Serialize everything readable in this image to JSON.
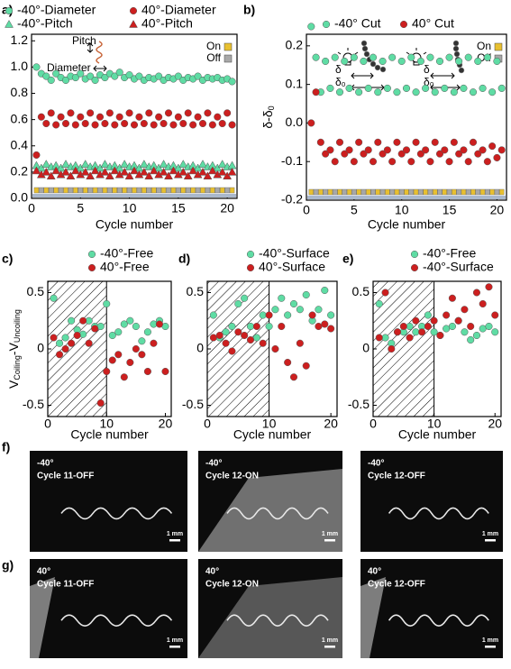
{
  "chart_data": [
    {
      "type": "scatter",
      "panel": "a)",
      "xlabel": "Cycle number",
      "x": [
        0.5,
        1,
        1.5,
        2,
        2.5,
        3,
        3.5,
        4,
        4.5,
        5,
        5.5,
        6,
        6.5,
        7,
        7.5,
        8,
        8.5,
        9,
        9.5,
        10,
        10.5,
        11,
        11.5,
        12,
        12.5,
        13,
        13.5,
        14,
        14.5,
        15,
        15.5,
        16,
        16.5,
        17,
        17.5,
        18,
        18.5,
        19,
        19.5,
        20,
        20.5
      ],
      "xlim": [
        0,
        21
      ],
      "xticks": [
        0,
        5,
        10,
        15,
        20
      ],
      "ylim": [
        0,
        1.25
      ],
      "yticks": [
        {
          "value": 0,
          "label": "0.0"
        },
        {
          "value": 0.2,
          "label": "0.2"
        },
        0.4,
        0.6,
        0.8,
        {
          "value": 1,
          "label": "1.0"
        },
        {
          "value": 1.2,
          "label": "1.2"
        }
      ],
      "series": [
        {
          "name": "-40°-Diameter",
          "color": "#5fdca4",
          "marker": "circle",
          "values": [
            1.0,
            0.95,
            0.93,
            0.9,
            0.95,
            0.92,
            0.9,
            0.93,
            0.92,
            0.95,
            0.91,
            0.93,
            0.9,
            0.94,
            0.92,
            0.95,
            0.93,
            0.96,
            0.92,
            0.94,
            0.91,
            0.93,
            0.9,
            0.92,
            0.91,
            0.93,
            0.9,
            0.92,
            0.91,
            0.93,
            0.9,
            0.92,
            0.91,
            0.93,
            0.9,
            0.92,
            0.91,
            0.92,
            0.9,
            0.91,
            0.89
          ]
        },
        {
          "name": "40°-Diameter",
          "color": "#cc1f1f",
          "marker": "circle",
          "values": [
            0.33,
            0.62,
            0.57,
            0.65,
            0.56,
            0.62,
            0.57,
            0.65,
            0.56,
            0.62,
            0.57,
            0.65,
            0.56,
            0.62,
            0.57,
            0.65,
            0.56,
            0.62,
            0.57,
            0.65,
            0.56,
            0.62,
            0.57,
            0.65,
            0.56,
            0.62,
            0.57,
            0.65,
            0.56,
            0.62,
            0.57,
            0.65,
            0.56,
            0.62,
            0.57,
            0.65,
            0.56,
            0.62,
            0.57,
            0.65,
            0.56
          ]
        },
        {
          "name": "-40°-Pitch",
          "color": "#5fdca4",
          "marker": "triangle",
          "values": [
            0.25,
            0.23,
            0.26,
            0.24,
            0.25,
            0.23,
            0.26,
            0.24,
            0.25,
            0.23,
            0.26,
            0.24,
            0.25,
            0.23,
            0.26,
            0.24,
            0.25,
            0.23,
            0.26,
            0.24,
            0.25,
            0.23,
            0.26,
            0.24,
            0.25,
            0.23,
            0.26,
            0.24,
            0.25,
            0.23,
            0.26,
            0.24,
            0.25,
            0.23,
            0.26,
            0.24,
            0.25,
            0.23,
            0.26,
            0.24,
            0.25
          ]
        },
        {
          "name": "40°-Pitch",
          "color": "#cc1f1f",
          "marker": "triangle",
          "values": [
            0.21,
            0.18,
            0.2,
            0.17,
            0.21,
            0.18,
            0.2,
            0.17,
            0.21,
            0.18,
            0.2,
            0.17,
            0.21,
            0.18,
            0.2,
            0.17,
            0.21,
            0.18,
            0.2,
            0.17,
            0.21,
            0.18,
            0.2,
            0.17,
            0.21,
            0.18,
            0.2,
            0.17,
            0.21,
            0.18,
            0.2,
            0.17,
            0.21,
            0.18,
            0.2,
            0.17,
            0.21,
            0.18,
            0.2,
            0.17,
            0.2
          ]
        }
      ],
      "strip": {
        "labels": [
          "On",
          "Off"
        ],
        "colors": [
          "#e8c030",
          "#a8a8a8"
        ]
      },
      "annotations": [
        "Pitch",
        "Diameter"
      ]
    },
    {
      "type": "scatter",
      "panel": "b)",
      "xlabel": "Cycle number",
      "ylabel": [
        "δ-δ",
        "0"
      ],
      "x": [
        0.5,
        1,
        1.5,
        2,
        2.5,
        3,
        3.5,
        4,
        4.5,
        5,
        5.5,
        6,
        6.5,
        7,
        7.5,
        8,
        8.5,
        9,
        9.5,
        10,
        10.5,
        11,
        11.5,
        12,
        12.5,
        13,
        13.5,
        14,
        14.5,
        15,
        15.5,
        16,
        16.5,
        17,
        17.5,
        18,
        18.5,
        19,
        19.5,
        20,
        20.5
      ],
      "xlim": [
        0,
        21
      ],
      "xticks": [
        0,
        5,
        10,
        15,
        20
      ],
      "ylim": [
        -0.2,
        0.23
      ],
      "yticks": [
        -0.2,
        -0.1,
        {
          "value": 0,
          "label": "0.0"
        },
        0.1,
        0.2
      ],
      "series": [
        {
          "name": "-40° Cut",
          "color": "#5fdca4",
          "marker": "circle",
          "values": [
            0.25,
            0.17,
            0.08,
            0.16,
            0.09,
            0.17,
            0.08,
            0.16,
            0.09,
            0.17,
            0.08,
            0.16,
            0.09,
            0.17,
            0.08,
            0.16,
            0.09,
            0.17,
            0.08,
            0.16,
            0.09,
            0.17,
            0.08,
            0.16,
            0.09,
            0.17,
            0.08,
            0.16,
            0.09,
            0.17,
            0.08,
            0.16,
            0.09,
            0.17,
            0.08,
            0.16,
            0.09,
            0.17,
            0.08,
            0.16,
            0.09
          ]
        },
        {
          "name": "40° Cut",
          "color": "#cc1f1f",
          "marker": "circle",
          "values": [
            0.0,
            0.08,
            -0.05,
            -0.08,
            -0.07,
            -0.1,
            -0.05,
            -0.08,
            -0.07,
            -0.1,
            -0.05,
            -0.08,
            -0.07,
            -0.1,
            -0.05,
            -0.08,
            -0.07,
            -0.1,
            -0.05,
            -0.08,
            -0.07,
            -0.1,
            -0.05,
            -0.08,
            -0.07,
            -0.1,
            -0.05,
            -0.08,
            -0.07,
            -0.1,
            -0.05,
            -0.08,
            -0.07,
            -0.1,
            -0.05,
            -0.08,
            -0.07,
            -0.1,
            -0.06,
            -0.09,
            -0.07
          ]
        }
      ],
      "strip": {
        "labels": [
          "On",
          "Off"
        ],
        "colors": [
          "#e8c030",
          "#a8a8a8"
        ]
      },
      "annotations": [
        "δ",
        "δ₀",
        "δ",
        "δ₀"
      ]
    },
    {
      "type": "scatter",
      "panel": "c)",
      "xlabel": "Cycle number",
      "ylabel": [
        "V",
        "Coiling",
        "-V",
        "Uncoiling"
      ],
      "x": [
        1,
        2,
        3,
        4,
        5,
        6,
        7,
        8,
        9,
        10,
        11,
        12,
        13,
        14,
        15,
        16,
        17,
        18,
        19,
        20
      ],
      "xlim": [
        0,
        21
      ],
      "xticks": [
        0,
        10,
        20
      ],
      "ylim": [
        -0.6,
        0.6
      ],
      "yticks": [
        -0.5,
        0,
        0.5
      ],
      "shaded_x": [
        0,
        10
      ],
      "series": [
        {
          "name": "-40°-Free",
          "color": "#5fdca4",
          "marker": "circle",
          "values": [
            0.45,
            0.05,
            0.1,
            0.25,
            0.17,
            0.13,
            0.25,
            0.2,
            0.2,
            0.4,
            0.12,
            0.15,
            0.22,
            0.25,
            0.2,
            0.07,
            0.15,
            0.22,
            0.25,
            0.2
          ]
        },
        {
          "name": "40°-Free",
          "color": "#cc1f1f",
          "marker": "circle",
          "values": [
            0.1,
            -0.05,
            0.0,
            0.05,
            0.12,
            0.25,
            0.05,
            0.18,
            -0.48,
            -0.2,
            -0.1,
            -0.05,
            -0.25,
            -0.12,
            0.0,
            -0.05,
            -0.2,
            0.05,
            0.22,
            -0.2
          ]
        }
      ]
    },
    {
      "type": "scatter",
      "panel": "d)",
      "xlabel": "Cycle number",
      "x": [
        1,
        2,
        3,
        4,
        5,
        6,
        7,
        8,
        9,
        10,
        11,
        12,
        13,
        14,
        15,
        16,
        17,
        18,
        19,
        20
      ],
      "xlim": [
        0,
        21
      ],
      "xticks": [
        0,
        10,
        20
      ],
      "ylim": [
        -0.6,
        0.6
      ],
      "yticks": [
        -0.5,
        0,
        0.5
      ],
      "shaded_x": [
        0,
        10
      ],
      "series": [
        {
          "name": "-40°-Surface",
          "color": "#5fdca4",
          "marker": "circle",
          "values": [
            0.3,
            0.1,
            0.15,
            0.2,
            0.4,
            0.45,
            0.2,
            0.1,
            0.3,
            0.2,
            0.35,
            0.45,
            0.3,
            0.4,
            0.35,
            0.48,
            0.25,
            0.35,
            0.52,
            0.3
          ]
        },
        {
          "name": "40°-Surface",
          "color": "#cc1f1f",
          "marker": "circle",
          "values": [
            0.1,
            0.12,
            0.05,
            -0.02,
            0.15,
            0.12,
            0.08,
            0.2,
            0.05,
            0.3,
            0.0,
            0.2,
            -0.12,
            -0.25,
            0.05,
            -0.15,
            0.3,
            0.2,
            0.22,
            0.18
          ]
        }
      ]
    },
    {
      "type": "scatter",
      "panel": "e)",
      "xlabel": "Cycle number",
      "x": [
        1,
        2,
        3,
        4,
        5,
        6,
        7,
        8,
        9,
        10,
        11,
        12,
        13,
        14,
        15,
        16,
        17,
        18,
        19,
        20
      ],
      "xlim": [
        0,
        21
      ],
      "xticks": [
        0,
        10,
        20
      ],
      "ylim": [
        -0.6,
        0.6
      ],
      "yticks": [
        -0.5,
        0,
        0.5
      ],
      "shaded_x": [
        0,
        10
      ],
      "series": [
        {
          "name": "-40°-Free",
          "color": "#5fdca4",
          "marker": "circle",
          "values": [
            0.4,
            0.1,
            0.05,
            0.15,
            0.15,
            0.2,
            0.15,
            0.2,
            0.3,
            0.15,
            0.12,
            0.18,
            0.2,
            0.25,
            0.15,
            0.08,
            0.12,
            0.18,
            0.2,
            0.15
          ]
        },
        {
          "name": "-40°-Surface",
          "color": "#cc1f1f",
          "marker": "circle",
          "values": [
            0.1,
            0.5,
            0.0,
            0.15,
            0.2,
            0.1,
            0.25,
            0.15,
            0.2,
            0.25,
            0.12,
            0.3,
            0.45,
            0.25,
            0.35,
            0.2,
            0.5,
            0.4,
            0.55,
            0.3
          ]
        }
      ]
    }
  ],
  "photos": [
    {
      "panel": "f)",
      "items": [
        {
          "temp": "-40°",
          "caption": "Cycle 11-OFF",
          "scale": "1 mm"
        },
        {
          "temp": "-40°",
          "caption": "Cycle 12-ON",
          "scale": "1 mm"
        },
        {
          "temp": "-40°",
          "caption": "Cycle 12-OFF",
          "scale": "1 mm"
        }
      ]
    },
    {
      "panel": "g)",
      "items": [
        {
          "temp": "40°",
          "caption": "Cycle 11-OFF",
          "scale": "1 mm"
        },
        {
          "temp": "40°",
          "caption": "Cycle 12-ON",
          "scale": "1 mm"
        },
        {
          "temp": "40°",
          "caption": "Cycle 12-OFF",
          "scale": "1 mm"
        }
      ]
    }
  ]
}
